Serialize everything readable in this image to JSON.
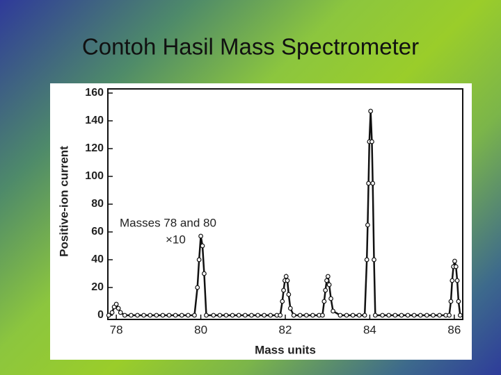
{
  "chart_data": {
    "type": "line",
    "title": "Contoh Hasil Mass Spectrometer",
    "xlabel": "Mass units",
    "ylabel": "Positive-ion current",
    "annotations": [
      "Masses 78 and 80",
      "×10"
    ],
    "color": "#111111",
    "xlim": [
      77.8,
      86.2
    ],
    "ylim": [
      -3,
      163
    ],
    "xticks": [
      78,
      80,
      82,
      84,
      86
    ],
    "yticks": [
      0,
      20,
      40,
      60,
      80,
      100,
      120,
      140,
      160
    ],
    "x": [
      77.82,
      77.9,
      77.95,
      78.0,
      78.05,
      78.1,
      78.2,
      78.35,
      78.5,
      78.65,
      78.8,
      78.95,
      79.1,
      79.25,
      79.4,
      79.55,
      79.7,
      79.85,
      79.92,
      79.96,
      80.0,
      80.04,
      80.08,
      80.13,
      80.3,
      80.45,
      80.6,
      80.75,
      80.9,
      81.05,
      81.2,
      81.35,
      81.5,
      81.65,
      81.8,
      81.88,
      81.93,
      81.96,
      81.99,
      82.02,
      82.05,
      82.08,
      82.12,
      82.2,
      82.35,
      82.5,
      82.65,
      82.8,
      82.88,
      82.92,
      82.95,
      82.98,
      83.01,
      83.04,
      83.08,
      83.13,
      83.3,
      83.45,
      83.6,
      83.75,
      83.88,
      83.93,
      83.95,
      83.97,
      83.99,
      84.02,
      84.05,
      84.07,
      84.1,
      84.13,
      84.3,
      84.45,
      84.6,
      84.75,
      84.9,
      85.05,
      85.2,
      85.35,
      85.5,
      85.65,
      85.8,
      85.88,
      85.92,
      85.95,
      85.98,
      86.01,
      86.04,
      86.07,
      86.1,
      86.14
    ],
    "values": [
      0,
      2,
      6,
      8,
      5,
      2,
      0,
      0,
      0,
      0,
      0,
      0,
      0,
      0,
      0,
      0,
      0,
      0,
      20,
      40,
      57,
      50,
      30,
      0,
      0,
      0,
      0,
      0,
      0,
      0,
      0,
      0,
      0,
      0,
      0,
      0,
      10,
      18,
      25,
      28,
      25,
      15,
      5,
      0,
      0,
      0,
      0,
      0,
      0,
      10,
      18,
      25,
      28,
      22,
      12,
      3,
      0,
      0,
      0,
      0,
      0,
      40,
      65,
      95,
      125,
      147,
      125,
      95,
      40,
      0,
      0,
      0,
      0,
      0,
      0,
      0,
      0,
      0,
      0,
      0,
      0,
      0,
      10,
      25,
      35,
      39,
      35,
      25,
      10,
      0
    ]
  }
}
